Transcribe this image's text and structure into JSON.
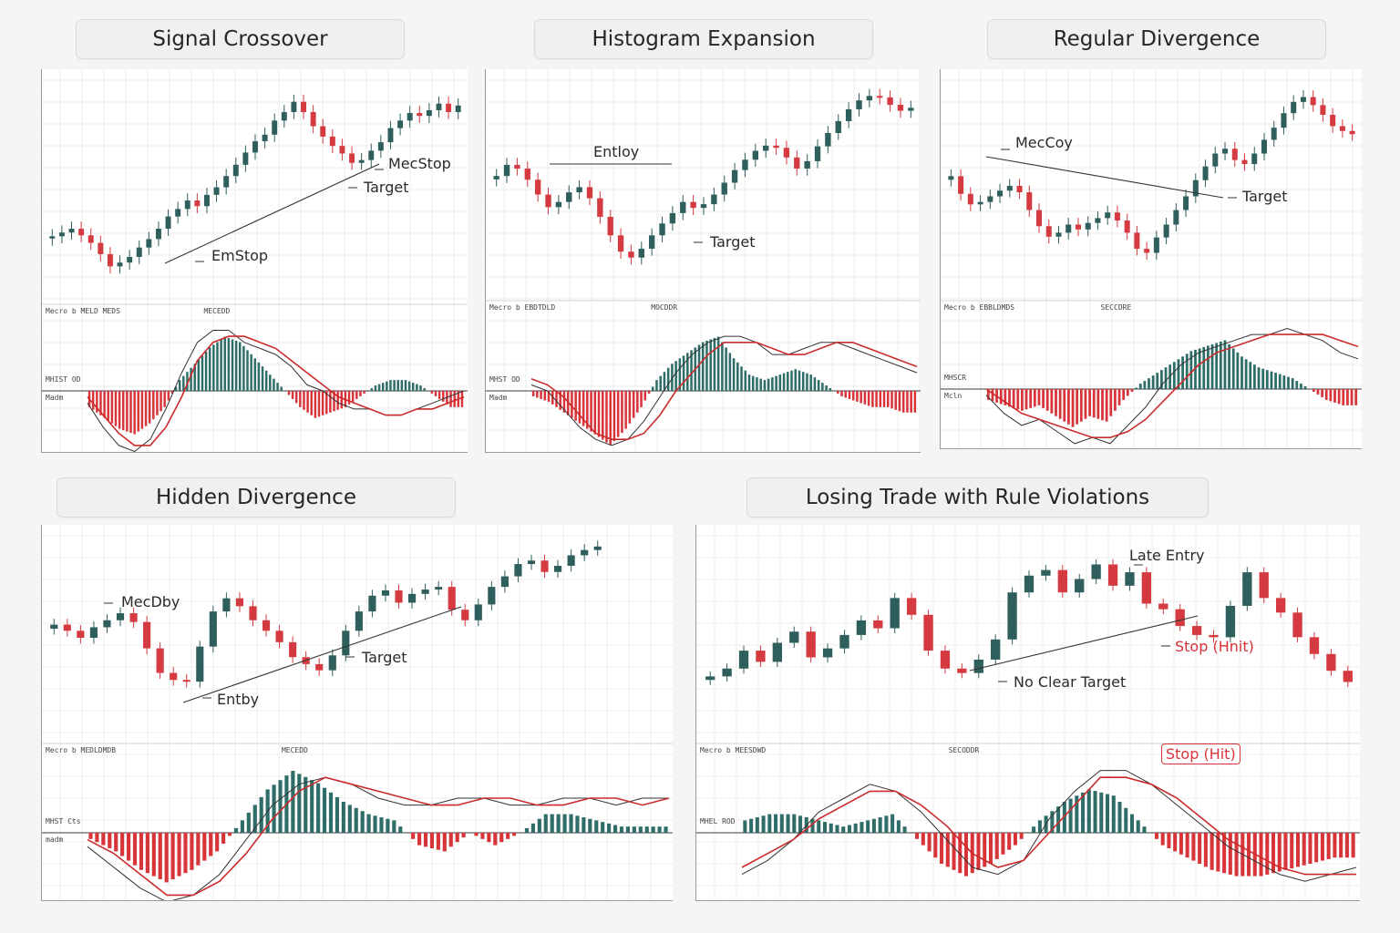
{
  "colors": {
    "up": "#2f5f5c",
    "down": "#d43a3f",
    "macd_line": "#333333",
    "signal_line": "#cc2b2b",
    "hist_pos": "#2f6e68",
    "hist_neg": "#d8353a",
    "trendline": "#333333"
  },
  "panels": [
    {
      "id": "signal-crossover",
      "title": "Signal Crossover",
      "annotations": [
        {
          "key": "a1",
          "text": "MecStop"
        },
        {
          "key": "a2",
          "text": "Target"
        },
        {
          "key": "a3",
          "text": "EmStop"
        }
      ],
      "labels": {
        "header": "Mecro b MELD MEDS",
        "h2": "MECEDD",
        "l1": "MHIST OD",
        "l2": "Madm"
      }
    },
    {
      "id": "histogram-expansion",
      "title": "Histogram Expansion",
      "annotations": [
        {
          "key": "a1",
          "text": "Entloy"
        },
        {
          "key": "a2",
          "text": "Target"
        }
      ],
      "labels": {
        "header": "Mecro b EBDTDLD",
        "h2": "MOCDDR",
        "l1": "MHST OD",
        "l2": "Madm"
      }
    },
    {
      "id": "regular-divergence",
      "title": "Regular Divergence",
      "annotations": [
        {
          "key": "a1",
          "text": "MecCoy"
        },
        {
          "key": "a2",
          "text": "Target"
        }
      ],
      "labels": {
        "header": "Mecro b EBBLDMDS",
        "h2": "SECCDRE",
        "l1": "MHSCR",
        "l2": "Mcln"
      }
    },
    {
      "id": "hidden-divergence",
      "title": "Hidden Divergence",
      "annotations": [
        {
          "key": "a1",
          "text": "MecDby"
        },
        {
          "key": "a2",
          "text": "Target"
        },
        {
          "key": "a3",
          "text": "Entby"
        }
      ],
      "labels": {
        "header": "Mecro b MEDLDMDB",
        "h2": "MECEDD",
        "l1": "MHST Cts",
        "l2": "madm"
      }
    },
    {
      "id": "losing-trade",
      "title": "Losing Trade with Rule Violations",
      "annotations": [
        {
          "key": "a1",
          "text": "Late Entry"
        },
        {
          "key": "a2",
          "text": "Stop (Hnit)"
        },
        {
          "key": "a3",
          "text": "No Clear Target"
        },
        {
          "key": "a4",
          "text": "Stop (Hit)"
        }
      ],
      "labels": {
        "header": "Mecro b MEESDWD",
        "h2": "SECODDR",
        "l1": "MHEL ROD",
        "l2": ""
      }
    }
  ],
  "chart_data": [
    {
      "type": "candlestick",
      "title": "Signal Crossover",
      "close": [
        82,
        86,
        90,
        83,
        75,
        63,
        50,
        54,
        60,
        70,
        79,
        90,
        103,
        111,
        120,
        114,
        126,
        134,
        146,
        158,
        171,
        183,
        190,
        205,
        214,
        225,
        214,
        199,
        188,
        178,
        170,
        160,
        163,
        173,
        182,
        197,
        205,
        213,
        210,
        216,
        223,
        214,
        221
      ],
      "macd": [
        -0.2,
        -0.6,
        -0.9,
        -1.0,
        -0.8,
        -0.3,
        0.3,
        0.8,
        1.0,
        1.0,
        0.8,
        0.7,
        0.6,
        0.4,
        0.1,
        0.0,
        -0.2,
        -0.3,
        -0.3,
        -0.4,
        -0.4,
        -0.3,
        -0.2,
        -0.1,
        0.0
      ],
      "signal": [
        -0.1,
        -0.4,
        -0.7,
        -0.9,
        -0.9,
        -0.6,
        -0.1,
        0.5,
        0.8,
        0.9,
        0.9,
        0.8,
        0.7,
        0.5,
        0.3,
        0.1,
        -0.1,
        -0.2,
        -0.3,
        -0.4,
        -0.4,
        -0.3,
        -0.3,
        -0.2,
        -0.1
      ],
      "histogram": [
        -0.3,
        -0.5,
        -0.7,
        -0.8,
        -0.6,
        -0.3,
        0.2,
        0.5,
        0.8,
        1.0,
        0.9,
        0.6,
        0.3,
        0.0,
        -0.3,
        -0.5,
        -0.4,
        -0.3,
        -0.1,
        0.1,
        0.2,
        0.2,
        0.1,
        -0.1,
        -0.3
      ]
    },
    {
      "type": "candlestick",
      "title": "Histogram Expansion",
      "close": [
        150,
        165,
        160,
        145,
        125,
        108,
        115,
        128,
        135,
        120,
        95,
        70,
        48,
        40,
        52,
        70,
        86,
        100,
        115,
        107,
        112,
        125,
        141,
        158,
        172,
        184,
        191,
        188,
        175,
        160,
        170,
        190,
        208,
        224,
        240,
        252,
        258,
        256,
        246,
        238,
        242
      ],
      "macd": [
        0.1,
        0.0,
        -0.3,
        -0.6,
        -0.8,
        -0.9,
        -0.8,
        -0.5,
        -0.1,
        0.3,
        0.6,
        0.8,
        0.9,
        0.9,
        0.8,
        0.6,
        0.6,
        0.7,
        0.8,
        0.8,
        0.7,
        0.6,
        0.5,
        0.4,
        0.3
      ],
      "signal": [
        0.2,
        0.1,
        -0.1,
        -0.4,
        -0.7,
        -0.8,
        -0.8,
        -0.7,
        -0.4,
        0.0,
        0.3,
        0.6,
        0.8,
        0.8,
        0.8,
        0.7,
        0.6,
        0.6,
        0.7,
        0.8,
        0.8,
        0.7,
        0.6,
        0.5,
        0.4
      ],
      "histogram": [
        -0.1,
        -0.2,
        -0.4,
        -0.6,
        -0.8,
        -1.0,
        -0.7,
        -0.3,
        0.2,
        0.5,
        0.7,
        0.9,
        1.0,
        0.6,
        0.3,
        0.2,
        0.3,
        0.4,
        0.3,
        0.1,
        -0.1,
        -0.2,
        -0.3,
        -0.3,
        -0.4
      ]
    },
    {
      "type": "candlestick",
      "title": "Regular Divergence",
      "close": [
        150,
        128,
        115,
        118,
        125,
        132,
        138,
        130,
        108,
        88,
        75,
        80,
        90,
        84,
        92,
        98,
        105,
        95,
        80,
        60,
        55,
        74,
        90,
        108,
        125,
        145,
        162,
        178,
        184,
        170,
        165,
        178,
        195,
        210,
        228,
        242,
        248,
        238,
        226,
        212,
        206,
        202
      ],
      "macd": [
        -0.1,
        -0.4,
        -0.6,
        -0.5,
        -0.7,
        -0.9,
        -0.8,
        -0.9,
        -0.6,
        -0.3,
        0.1,
        0.4,
        0.6,
        0.7,
        0.8,
        0.9,
        0.9,
        1.0,
        0.9,
        0.8,
        0.6,
        0.5
      ],
      "signal": [
        0.0,
        -0.2,
        -0.4,
        -0.5,
        -0.6,
        -0.7,
        -0.8,
        -0.8,
        -0.7,
        -0.5,
        -0.2,
        0.1,
        0.4,
        0.6,
        0.7,
        0.8,
        0.9,
        0.9,
        0.9,
        0.9,
        0.8,
        0.7
      ],
      "histogram": [
        -0.2,
        -0.3,
        -0.4,
        -0.3,
        -0.5,
        -0.7,
        -0.5,
        -0.6,
        -0.2,
        0.1,
        0.3,
        0.5,
        0.7,
        0.8,
        0.9,
        0.6,
        0.4,
        0.3,
        0.2,
        0.0,
        -0.2,
        -0.3
      ]
    },
    {
      "type": "candlestick",
      "title": "Hidden Divergence",
      "close": [
        155,
        148,
        140,
        152,
        160,
        168,
        158,
        128,
        100,
        92,
        90,
        130,
        170,
        185,
        176,
        160,
        148,
        135,
        118,
        110,
        103,
        120,
        148,
        170,
        188,
        194,
        180,
        190,
        195,
        198,
        172,
        160,
        178,
        198,
        210,
        224,
        228,
        215,
        222,
        234,
        240,
        244
      ],
      "macd": [
        -0.2,
        -0.5,
        -0.8,
        -1.0,
        -0.9,
        -0.6,
        -0.1,
        0.4,
        0.7,
        0.8,
        0.7,
        0.5,
        0.4,
        0.4,
        0.5,
        0.5,
        0.4,
        0.4,
        0.5,
        0.5,
        0.4,
        0.5,
        0.5
      ],
      "signal": [
        -0.1,
        -0.3,
        -0.6,
        -0.9,
        -0.9,
        -0.7,
        -0.3,
        0.2,
        0.6,
        0.8,
        0.7,
        0.6,
        0.5,
        0.4,
        0.4,
        0.5,
        0.5,
        0.4,
        0.4,
        0.5,
        0.5,
        0.4,
        0.5
      ],
      "histogram": [
        -0.1,
        -0.3,
        -0.6,
        -0.8,
        -0.6,
        -0.3,
        0.2,
        0.7,
        1.0,
        0.8,
        0.5,
        0.3,
        0.2,
        -0.2,
        -0.3,
        0.0,
        -0.2,
        0.0,
        0.3,
        0.3,
        0.2,
        0.1,
        0.1
      ]
    },
    {
      "type": "candlestick",
      "title": "Losing Trade with Rule Violations",
      "close": [
        105,
        112,
        128,
        118,
        135,
        145,
        122,
        130,
        142,
        155,
        148,
        175,
        160,
        128,
        112,
        108,
        120,
        138,
        180,
        195,
        200,
        180,
        192,
        205,
        186,
        198,
        170,
        165,
        150,
        142,
        140,
        168,
        198,
        175,
        162,
        140,
        125,
        110,
        100
      ],
      "macd": [
        -0.6,
        -0.4,
        -0.1,
        0.3,
        0.5,
        0.7,
        0.6,
        0.3,
        -0.1,
        -0.5,
        -0.6,
        -0.4,
        0.2,
        0.6,
        0.9,
        0.9,
        0.7,
        0.4,
        0.1,
        -0.2,
        -0.4,
        -0.6,
        -0.7,
        -0.6,
        -0.5
      ],
      "signal": [
        -0.5,
        -0.3,
        -0.1,
        0.2,
        0.4,
        0.6,
        0.6,
        0.4,
        0.1,
        -0.3,
        -0.5,
        -0.4,
        0.0,
        0.4,
        0.8,
        0.8,
        0.7,
        0.5,
        0.2,
        -0.1,
        -0.3,
        -0.5,
        -0.6,
        -0.6,
        -0.6
      ],
      "histogram": [
        0.2,
        0.3,
        0.3,
        0.2,
        0.1,
        0.2,
        0.3,
        -0.1,
        -0.5,
        -0.7,
        -0.5,
        -0.2,
        0.2,
        0.5,
        0.7,
        0.6,
        0.2,
        -0.2,
        -0.4,
        -0.6,
        -0.7,
        -0.7,
        -0.6,
        -0.5,
        -0.4
      ]
    }
  ]
}
